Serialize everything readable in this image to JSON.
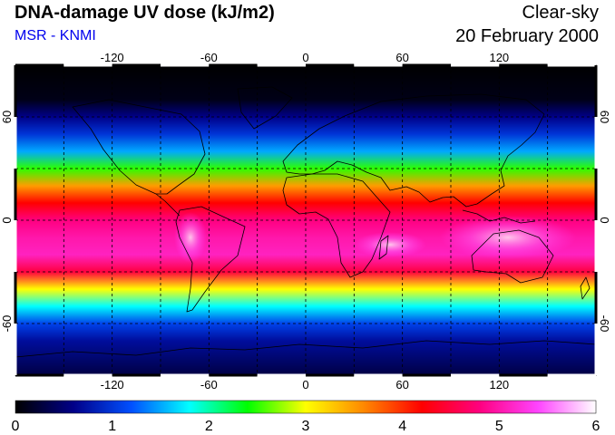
{
  "header": {
    "title": "DNA-damage UV dose (kJ/m2)",
    "subtitle": "MSR - KNMI",
    "sky_condition": "Clear-sky",
    "date": "20 February 2000"
  },
  "map": {
    "projection": "equirectangular",
    "lon_range": [
      -180,
      180
    ],
    "lat_range": [
      -90,
      90
    ],
    "gridline_spacing_deg": 30,
    "lon_tick_labels": [
      "-120",
      "-60",
      "0",
      "60",
      "120"
    ],
    "lat_tick_labels": [
      "60",
      "0",
      "-60"
    ],
    "lon_tick_values": [
      -120,
      -60,
      0,
      60,
      120
    ],
    "lat_tick_values": [
      60,
      0,
      -60
    ]
  },
  "colorbar": {
    "min": 0,
    "max": 6,
    "tick_labels": [
      "0",
      "1",
      "2",
      "3",
      "4",
      "5",
      "6"
    ],
    "colors": [
      "#000000",
      "#000088",
      "#0050ff",
      "#00ffff",
      "#00ff00",
      "#ffff00",
      "#ff8800",
      "#ff0000",
      "#ff0080",
      "#ff44ff",
      "#ffffff"
    ]
  },
  "uv_band": {
    "latitudes": [
      90,
      70,
      60,
      50,
      40,
      30,
      20,
      10,
      0,
      -10,
      -20,
      -30,
      -40,
      -50,
      -60,
      -70,
      -90
    ],
    "dose_values": [
      0.0,
      0.1,
      0.6,
      1.0,
      1.5,
      2.5,
      3.5,
      4.2,
      4.8,
      5.0,
      5.1,
      4.5,
      3.0,
      1.8,
      1.1,
      0.7,
      0.3
    ]
  }
}
